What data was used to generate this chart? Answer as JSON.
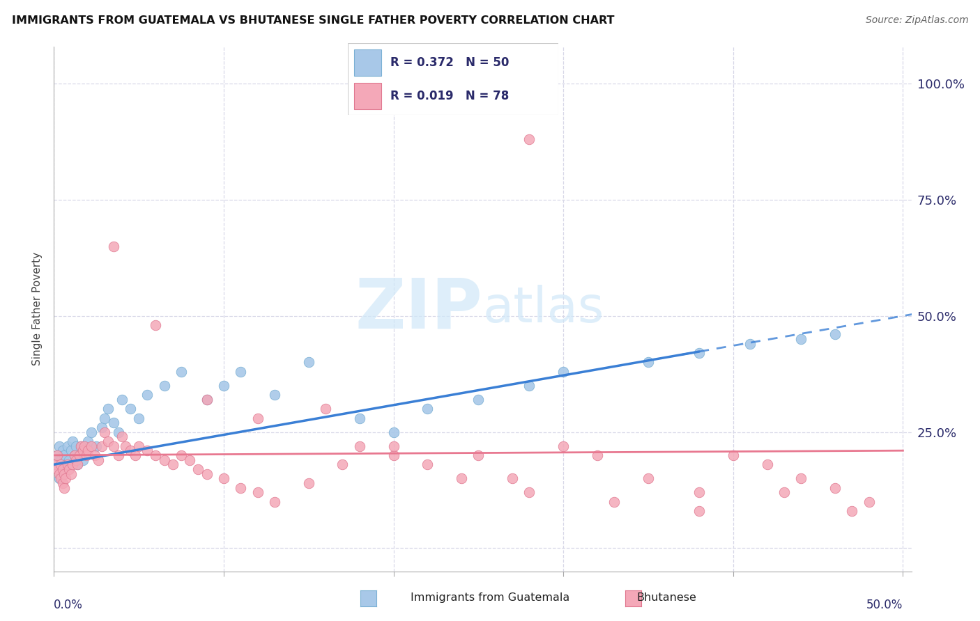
{
  "title": "IMMIGRANTS FROM GUATEMALA VS BHUTANESE SINGLE FATHER POVERTY CORRELATION CHART",
  "source": "Source: ZipAtlas.com",
  "ylabel": "Single Father Poverty",
  "series1_color": "#a8c8e8",
  "series2_color": "#f4a8b8",
  "series1_edge": "#7ab0d4",
  "series2_edge": "#e07890",
  "trendline1_color": "#3a7fd5",
  "trendline2_color": "#e87890",
  "watermark_color": "#d0e8f8",
  "text_color": "#2a2a6a",
  "grid_color": "#d8d8e8",
  "legend1_R": "0.372",
  "legend1_N": "50",
  "legend2_R": "0.019",
  "legend2_N": "78",
  "xlim": [
    0.0,
    0.505
  ],
  "ylim": [
    -0.05,
    1.08
  ],
  "ytick_vals": [
    0.0,
    0.25,
    0.5,
    0.75,
    1.0
  ],
  "ytick_labels": [
    "",
    "25.0%",
    "50.0%",
    "75.0%",
    "100.0%"
  ],
  "xtick_vals": [
    0.0,
    0.1,
    0.2,
    0.3,
    0.4,
    0.5
  ],
  "guat_x": [
    0.001,
    0.002,
    0.003,
    0.003,
    0.004,
    0.005,
    0.005,
    0.006,
    0.007,
    0.008,
    0.009,
    0.01,
    0.011,
    0.012,
    0.013,
    0.014,
    0.015,
    0.016,
    0.017,
    0.018,
    0.02,
    0.022,
    0.025,
    0.028,
    0.03,
    0.032,
    0.035,
    0.038,
    0.04,
    0.045,
    0.05,
    0.055,
    0.065,
    0.075,
    0.09,
    0.1,
    0.11,
    0.13,
    0.15,
    0.18,
    0.2,
    0.22,
    0.25,
    0.28,
    0.3,
    0.35,
    0.38,
    0.41,
    0.44,
    0.46
  ],
  "guat_y": [
    0.18,
    0.2,
    0.15,
    0.22,
    0.19,
    0.21,
    0.17,
    0.2,
    0.18,
    0.22,
    0.19,
    0.21,
    0.23,
    0.2,
    0.22,
    0.18,
    0.2,
    0.22,
    0.19,
    0.21,
    0.23,
    0.25,
    0.22,
    0.26,
    0.28,
    0.3,
    0.27,
    0.25,
    0.32,
    0.3,
    0.28,
    0.33,
    0.35,
    0.38,
    0.32,
    0.35,
    0.38,
    0.33,
    0.4,
    0.28,
    0.25,
    0.3,
    0.32,
    0.35,
    0.38,
    0.4,
    0.42,
    0.44,
    0.45,
    0.46
  ],
  "bhut_x": [
    0.001,
    0.002,
    0.002,
    0.003,
    0.004,
    0.004,
    0.005,
    0.005,
    0.006,
    0.006,
    0.007,
    0.008,
    0.009,
    0.01,
    0.011,
    0.012,
    0.013,
    0.014,
    0.015,
    0.016,
    0.017,
    0.018,
    0.019,
    0.02,
    0.022,
    0.024,
    0.026,
    0.028,
    0.03,
    0.032,
    0.035,
    0.038,
    0.04,
    0.042,
    0.045,
    0.048,
    0.05,
    0.055,
    0.06,
    0.065,
    0.07,
    0.075,
    0.08,
    0.085,
    0.09,
    0.1,
    0.11,
    0.12,
    0.13,
    0.15,
    0.17,
    0.18,
    0.2,
    0.22,
    0.25,
    0.27,
    0.28,
    0.3,
    0.32,
    0.35,
    0.38,
    0.4,
    0.42,
    0.44,
    0.46,
    0.48,
    0.035,
    0.06,
    0.09,
    0.12,
    0.16,
    0.2,
    0.24,
    0.28,
    0.33,
    0.38,
    0.43,
    0.47
  ],
  "bhut_y": [
    0.18,
    0.17,
    0.2,
    0.16,
    0.15,
    0.18,
    0.17,
    0.14,
    0.13,
    0.16,
    0.15,
    0.18,
    0.17,
    0.16,
    0.18,
    0.2,
    0.19,
    0.18,
    0.2,
    0.22,
    0.21,
    0.22,
    0.2,
    0.21,
    0.22,
    0.2,
    0.19,
    0.22,
    0.25,
    0.23,
    0.22,
    0.2,
    0.24,
    0.22,
    0.21,
    0.2,
    0.22,
    0.21,
    0.2,
    0.19,
    0.18,
    0.2,
    0.19,
    0.17,
    0.16,
    0.15,
    0.13,
    0.12,
    0.1,
    0.14,
    0.18,
    0.22,
    0.2,
    0.18,
    0.2,
    0.15,
    0.88,
    0.22,
    0.2,
    0.15,
    0.12,
    0.2,
    0.18,
    0.15,
    0.13,
    0.1,
    0.65,
    0.48,
    0.32,
    0.28,
    0.3,
    0.22,
    0.15,
    0.12,
    0.1,
    0.08,
    0.12,
    0.08
  ],
  "trendline1_x0": 0.0,
  "trendline1_y0": 0.18,
  "trendline1_x1": 0.5,
  "trendline1_y1": 0.5,
  "trendline2_x0": 0.0,
  "trendline2_y0": 0.2,
  "trendline2_x1": 0.5,
  "trendline2_y1": 0.21
}
